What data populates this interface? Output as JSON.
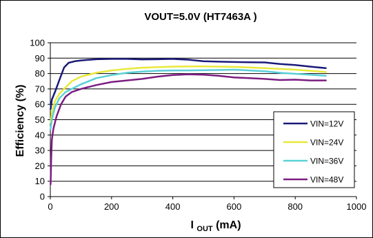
{
  "chart_data": {
    "type": "line",
    "title": "VOUT=5.0V (HT7463A )",
    "ylabel": "Efficiency (%)",
    "xlabel_main": "I",
    "xlabel_sub": "OUT",
    "xlabel_unit": " (mA)",
    "xlim": [
      0,
      1000
    ],
    "ylim": [
      0,
      100
    ],
    "xticks": [
      0,
      200,
      400,
      600,
      800,
      1000
    ],
    "yticks": [
      0,
      10,
      20,
      30,
      40,
      50,
      60,
      70,
      80,
      90,
      100
    ],
    "grid": "horizontal",
    "legend_position": "bottom-right",
    "series": [
      {
        "name": "VIN=12V",
        "color": "#1a1a78",
        "points": [
          [
            1,
            57
          ],
          [
            5,
            63
          ],
          [
            15,
            68
          ],
          [
            30,
            76
          ],
          [
            45,
            84
          ],
          [
            60,
            87
          ],
          [
            80,
            88
          ],
          [
            100,
            88.5
          ],
          [
            150,
            89.3
          ],
          [
            200,
            89.5
          ],
          [
            250,
            89.5
          ],
          [
            300,
            89.2
          ],
          [
            350,
            89.3
          ],
          [
            400,
            89.5
          ],
          [
            450,
            89
          ],
          [
            500,
            88
          ],
          [
            550,
            87.7
          ],
          [
            600,
            87.5
          ],
          [
            650,
            87.3
          ],
          [
            700,
            87.2
          ],
          [
            750,
            86.2
          ],
          [
            800,
            85.5
          ],
          [
            850,
            84.5
          ],
          [
            900,
            83.5
          ]
        ]
      },
      {
        "name": "VIN=24V",
        "color": "#e8e83a",
        "points": [
          [
            1,
            48
          ],
          [
            5,
            55
          ],
          [
            15,
            62
          ],
          [
            30,
            67
          ],
          [
            50,
            71
          ],
          [
            70,
            75
          ],
          [
            100,
            78
          ],
          [
            150,
            80.5
          ],
          [
            200,
            82
          ],
          [
            250,
            83
          ],
          [
            300,
            83.8
          ],
          [
            350,
            84.2
          ],
          [
            400,
            84.5
          ],
          [
            450,
            84.6
          ],
          [
            500,
            84.6
          ],
          [
            550,
            84.5
          ],
          [
            600,
            84.3
          ],
          [
            650,
            84
          ],
          [
            700,
            83.5
          ],
          [
            750,
            83
          ],
          [
            800,
            82.5
          ],
          [
            850,
            81.8
          ],
          [
            900,
            81
          ]
        ]
      },
      {
        "name": "VIN=36V",
        "color": "#5ad0d8",
        "points": [
          [
            1,
            44
          ],
          [
            5,
            50
          ],
          [
            15,
            58
          ],
          [
            30,
            64
          ],
          [
            50,
            68
          ],
          [
            70,
            70
          ],
          [
            100,
            73
          ],
          [
            150,
            77
          ],
          [
            200,
            79
          ],
          [
            250,
            80.5
          ],
          [
            300,
            81.3
          ],
          [
            350,
            81.8
          ],
          [
            400,
            82
          ],
          [
            450,
            82
          ],
          [
            500,
            82.2
          ],
          [
            550,
            82.3
          ],
          [
            600,
            82.5
          ],
          [
            650,
            82
          ],
          [
            700,
            81.5
          ],
          [
            750,
            80.5
          ],
          [
            800,
            79.8
          ],
          [
            850,
            79.2
          ],
          [
            900,
            78.5
          ]
        ]
      },
      {
        "name": "VIN=48V",
        "color": "#7b1d80",
        "points": [
          [
            1,
            8
          ],
          [
            3,
            25
          ],
          [
            5,
            37
          ],
          [
            10,
            44
          ],
          [
            20,
            52
          ],
          [
            35,
            60
          ],
          [
            50,
            65
          ],
          [
            70,
            68
          ],
          [
            100,
            70
          ],
          [
            150,
            72.5
          ],
          [
            200,
            74.5
          ],
          [
            250,
            75.5
          ],
          [
            300,
            76.5
          ],
          [
            350,
            78
          ],
          [
            400,
            79
          ],
          [
            450,
            79.5
          ],
          [
            500,
            79.3
          ],
          [
            550,
            78.5
          ],
          [
            600,
            77.5
          ],
          [
            650,
            77
          ],
          [
            700,
            76.5
          ],
          [
            750,
            75.8
          ],
          [
            800,
            76
          ],
          [
            850,
            75.5
          ],
          [
            900,
            75.5
          ]
        ]
      }
    ]
  }
}
